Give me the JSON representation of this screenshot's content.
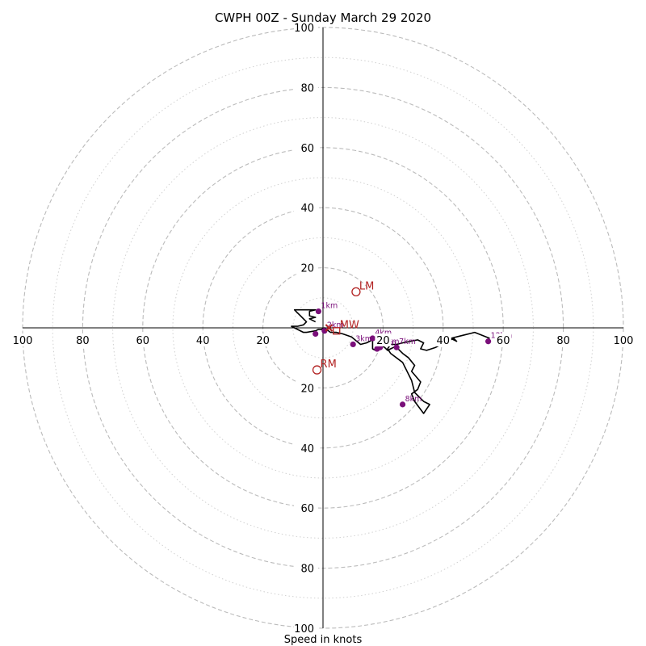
{
  "chart_data": {
    "type": "hodograph",
    "title": "CWPH 00Z - Sunday March 29 2020",
    "xlabel": "Speed in knots",
    "units": "knots",
    "range": [
      -100,
      100
    ],
    "rings_major": [
      20,
      40,
      60,
      80,
      100
    ],
    "rings_minor": [
      10,
      30,
      50,
      70,
      90
    ],
    "x_ticks": [
      -100,
      -80,
      -60,
      -40,
      -20,
      20,
      40,
      60,
      80,
      100
    ],
    "x_tick_labels": [
      "100",
      "80",
      "60",
      "40",
      "20",
      "20",
      "40",
      "60",
      "80",
      "100"
    ],
    "y_ticks": [
      100,
      80,
      60,
      40,
      20,
      -20,
      -40,
      -60,
      -80,
      -100
    ],
    "y_tick_labels": [
      "100",
      "80",
      "60",
      "40",
      "20",
      "20",
      "40",
      "60",
      "80",
      "100"
    ],
    "grid": true,
    "hodograph": {
      "color": "#000000",
      "u": [
        -2.5,
        -4.5,
        -2.5,
        -4.5,
        -4.5,
        -2.5,
        -4.5,
        -9.5,
        -8.5,
        -7.5,
        -6.5,
        -5.5,
        -6.5,
        -8.5,
        -10.5,
        -6.5,
        -5.5,
        -2.5,
        -1.5,
        -0.5,
        0.5,
        2.5,
        4.5,
        6.5,
        9.5,
        12.5,
        14.5,
        16.5,
        17.5,
        16.5,
        16.5,
        17.5,
        18.5,
        19.5,
        20.5,
        21.5,
        22.5,
        23.5,
        24.5,
        26.5,
        28.5,
        30.5,
        29.5,
        32.5,
        31.5,
        29.5,
        30.5,
        33.5,
        35.5,
        33.5,
        30.5,
        29.5,
        26.5,
        22.5,
        21.5,
        22.5,
        24.5,
        26.5,
        31.5,
        33.5,
        32.5,
        34.5,
        37.5,
        38.5,
        41.5,
        43.5,
        44.5,
        42.5,
        46.5,
        50.5,
        55.5
      ],
      "v": [
        2.0,
        3.0,
        3.5,
        4.0,
        5.5,
        6.0,
        6.0,
        6.0,
        5.0,
        4.0,
        3.0,
        2.0,
        1.0,
        0.5,
        0.5,
        -1.5,
        -1.5,
        -1.0,
        -0.5,
        -0.5,
        0.0,
        -1.5,
        -1.5,
        -2.0,
        -3.0,
        -5.5,
        -5.0,
        -4.0,
        -3.0,
        -3.5,
        -7.0,
        -7.5,
        -6.5,
        -6.0,
        -6.5,
        -7.5,
        -7.0,
        -6.5,
        -6.5,
        -8.5,
        -10.0,
        -12.5,
        -14.5,
        -18.0,
        -20.5,
        -22.0,
        -24.5,
        -28.5,
        -25.5,
        -24.5,
        -21.5,
        -17.5,
        -11.5,
        -8.5,
        -7.0,
        -5.5,
        -5.5,
        -5.0,
        -4.0,
        -5.0,
        -7.0,
        -7.5,
        -6.5,
        -6.0,
        -4.5,
        -3.5,
        -4.5,
        -3.5,
        -2.5,
        -1.5,
        -3.5
      ]
    },
    "height_markers": [
      {
        "label": "1km",
        "u": -1.5,
        "v": 5.5
      },
      {
        "label": "2km",
        "u": 0.5,
        "v": -1.0
      },
      {
        "label": "3km",
        "u": 10.0,
        "v": -5.5
      },
      {
        "label": "4km",
        "u": 16.5,
        "v": -3.5
      },
      {
        "label": "5km",
        "u": 18.0,
        "v": -7.0
      },
      {
        "label": "6km",
        "u": 19.0,
        "v": -6.5
      },
      {
        "label": "7km",
        "u": 24.5,
        "v": -6.5
      },
      {
        "label": "8km",
        "u": 26.5,
        "v": -25.5
      },
      {
        "label": "12km",
        "u": 55.0,
        "v": -4.5
      },
      {
        "label": "",
        "u": -2.5,
        "v": -2.0
      }
    ],
    "motions": [
      {
        "label": "LM",
        "symbol": "circle",
        "u": 11.0,
        "v": 12.0
      },
      {
        "label": "RM",
        "symbol": "circle",
        "u": -2.0,
        "v": -14.0
      },
      {
        "label": "MW",
        "symbol": "square",
        "u": 4.5,
        "v": -1.0
      }
    ],
    "storm_marker": {
      "symbol": "x",
      "u": 2.0,
      "v": 0.0
    },
    "motion_color": "#b22222",
    "marker_color": "#7a0f7a"
  }
}
